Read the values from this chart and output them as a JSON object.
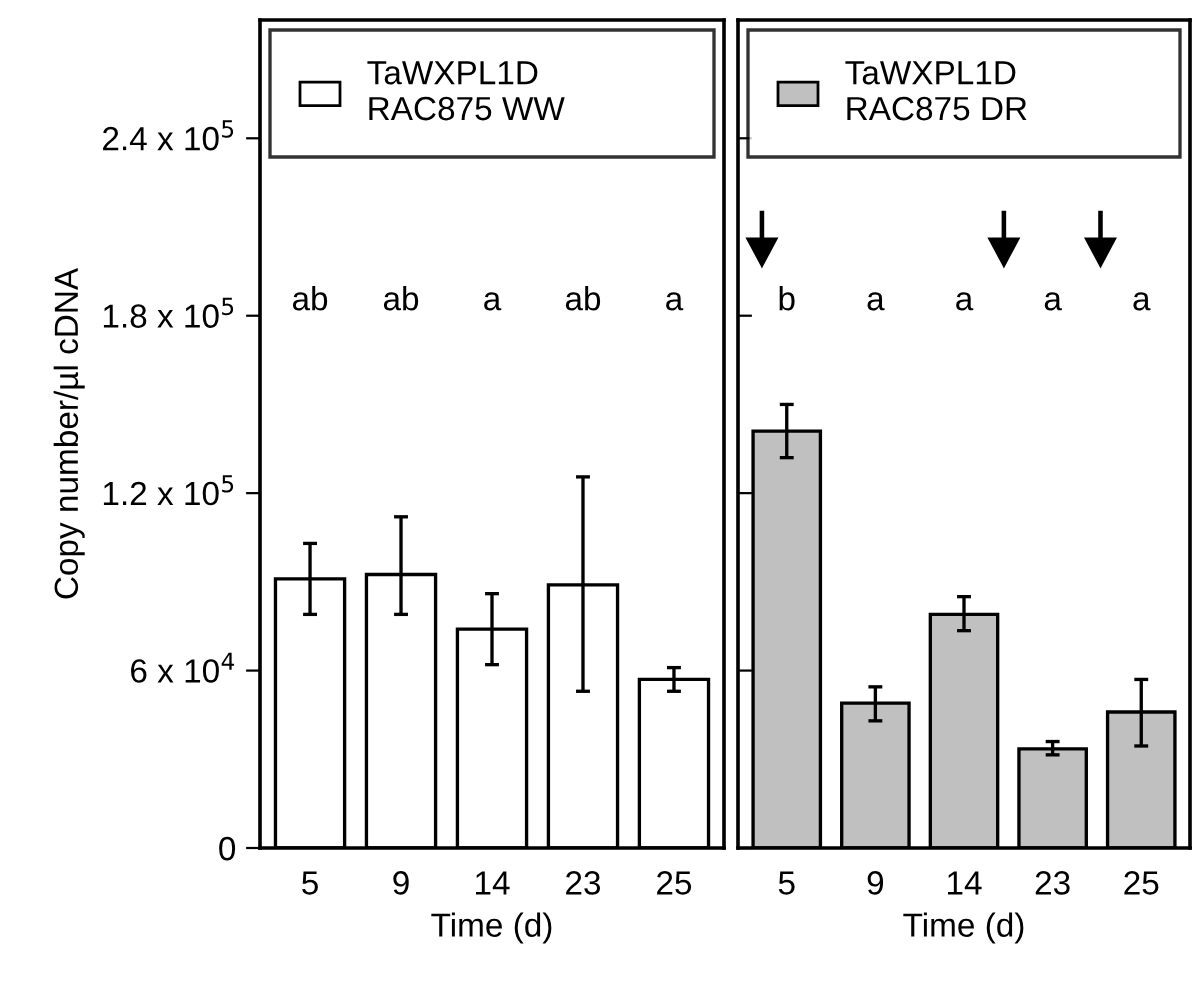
{
  "chart_data": [
    {
      "type": "bar",
      "categories": [
        "5",
        "9",
        "14",
        "23",
        "25"
      ],
      "xlabel": "Time (d)",
      "ylabel": "Copy number/µl cDNA",
      "series": [
        {
          "name": "TaWXPL1D\nRAC875 WW",
          "color": "#ffffff",
          "values": [
            91000,
            92500,
            74000,
            89000,
            57000
          ],
          "errors": [
            [
              79000,
              103000
            ],
            [
              79000,
              112000
            ],
            [
              62000,
              86000
            ],
            [
              53000,
              125500
            ],
            [
              53000,
              61000
            ]
          ]
        }
      ],
      "ylim": [
        0,
        280000
      ],
      "yticks": [
        {
          "value": 0,
          "label": "0"
        },
        {
          "value": 60000,
          "label": "6 x 10$^{4}$"
        },
        {
          "value": 120000,
          "label": "1.2 x 10$^{5}$"
        },
        {
          "value": 180000,
          "label": "1.8 x 10$^{5}$"
        },
        {
          "value": 240000,
          "label": "2.4 x 10$^{5}$"
        }
      ],
      "legend": "top",
      "annotations": [
        "ab",
        "ab",
        "a",
        "ab",
        "a"
      ]
    },
    {
      "type": "bar",
      "categories": [
        "5",
        "9",
        "14",
        "23",
        "25"
      ],
      "xlabel": "Time (d)",
      "series": [
        {
          "name": "TaWXPL1D\nRAC875 DR",
          "color": "#c0c0c0",
          "values": [
            141000,
            49000,
            79000,
            33500,
            46000
          ],
          "errors": [
            [
              132000,
              150000
            ],
            [
              43000,
              54500
            ],
            [
              73500,
              85000
            ],
            [
              31500,
              36000
            ],
            [
              34500,
              57000
            ]
          ]
        }
      ],
      "ylim": [
        0,
        280000
      ],
      "yticks": [
        {
          "value": 0,
          "label": null
        },
        {
          "value": 60000,
          "label": null
        },
        {
          "value": 120000,
          "label": null
        },
        {
          "value": 180000,
          "label": null
        },
        {
          "value": 240000,
          "label": null
        }
      ],
      "tick_labels": "x",
      "legend": "top",
      "annotations": [
        "b",
        "a",
        "a",
        "a",
        "a"
      ]
    }
  ]
}
